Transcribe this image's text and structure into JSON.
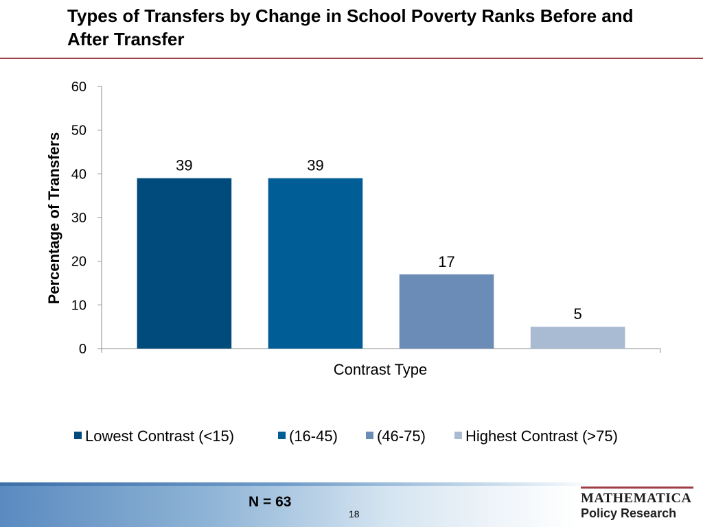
{
  "slide": {
    "title": "Types of Transfers by Change in School Poverty Ranks Before and After Transfer",
    "note": "N = 63",
    "page_number": "18",
    "logo": {
      "line1": "MATHEMATICA",
      "line2": "Policy Research"
    }
  },
  "chart_data": {
    "type": "bar",
    "title": "",
    "xlabel": "Contrast Type",
    "ylabel": "Percentage of Transfers",
    "ylim": [
      0,
      60
    ],
    "yticks": [
      0,
      10,
      20,
      30,
      40,
      50,
      60
    ],
    "grid": false,
    "legend_position": "bottom",
    "series": [
      {
        "name": "Lowest Contrast (<15)",
        "value": 39,
        "label": "39",
        "color": "#004b7c"
      },
      {
        "name": "(16-45)",
        "value": 39,
        "label": "39",
        "color": "#005d96"
      },
      {
        "name": "(46-75)",
        "value": 17,
        "label": "17",
        "color": "#6a8cb6"
      },
      {
        "name": "Highest Contrast (>75)",
        "value": 5,
        "label": "5",
        "color": "#a9bad3"
      }
    ]
  }
}
